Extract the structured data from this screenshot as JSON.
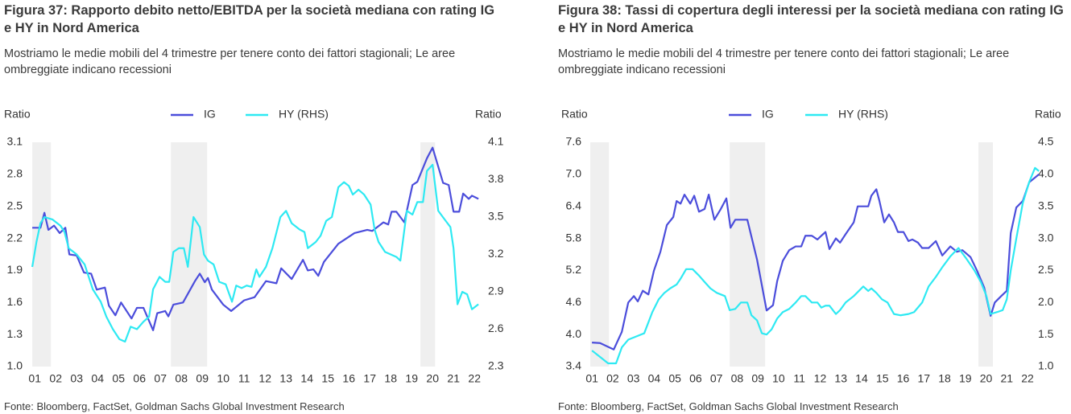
{
  "chart_data": [
    {
      "type": "line",
      "title": "Figura 37: Rapporto debito netto/EBITDA per la società mediana con rating IG e HY in Nord America",
      "subtitle": "Mostriamo le medie mobili del 4 trimestre per tenere conto dei fattori stagionali; Le aree ombreggiate indicano recessioni",
      "ylabel": "Ratio",
      "y2label": "Ratio",
      "source": "Fonte: Bloomberg, FactSet, Goldman Sachs Global Investment Research",
      "xlim": [
        0.8,
        22.3
      ],
      "xticks": [
        {
          "value": 1,
          "label": "01"
        },
        {
          "value": 2,
          "label": "02"
        },
        {
          "value": 3,
          "label": "03"
        },
        {
          "value": 4,
          "label": "04"
        },
        {
          "value": 5,
          "label": "05"
        },
        {
          "value": 6,
          "label": "06"
        },
        {
          "value": 7,
          "label": "07"
        },
        {
          "value": 8,
          "label": "08"
        },
        {
          "value": 9,
          "label": "09"
        },
        10,
        11,
        12,
        13,
        14,
        15,
        16,
        17,
        18,
        19,
        20,
        21,
        22
      ],
      "ylim": [
        1.0,
        3.1
      ],
      "yticks": [
        {
          "value": 1.0,
          "label": "1.0"
        },
        1.3,
        1.6,
        1.9,
        2.2,
        2.5,
        2.8,
        3.1
      ],
      "y2lim": [
        2.3,
        4.1
      ],
      "y2ticks": [
        2.3,
        2.6,
        2.9,
        3.2,
        3.5,
        3.8,
        4.1
      ],
      "recessions": [
        [
          0.88,
          1.77
        ],
        [
          7.5,
          9.23
        ],
        [
          19.42,
          20.12
        ]
      ],
      "series": [
        {
          "name": "IG",
          "color": "#4b4ddb",
          "x": [
            0.88,
            1.27,
            1.46,
            1.65,
            1.92,
            2.19,
            2.46,
            2.65,
            3.0,
            3.35,
            3.69,
            3.96,
            4.35,
            4.54,
            4.85,
            5.12,
            5.62,
            5.88,
            6.19,
            6.65,
            6.85,
            7.23,
            7.38,
            7.62,
            8.08,
            8.65,
            8.88,
            9.12,
            9.27,
            9.46,
            10.0,
            10.38,
            11.0,
            11.5,
            12.04,
            12.54,
            12.77,
            13.27,
            13.81,
            14.04,
            14.31,
            14.54,
            14.81,
            15.5,
            16.27,
            16.88,
            17.12,
            17.65,
            17.88,
            18.04,
            18.27,
            18.65,
            19.04,
            19.27,
            19.73,
            20.0,
            20.5,
            20.77,
            21.0,
            21.27,
            21.46,
            21.73,
            21.88,
            22.19
          ],
          "values": [
            2.3,
            2.3,
            2.44,
            2.28,
            2.32,
            2.25,
            2.3,
            2.05,
            2.04,
            1.88,
            1.87,
            1.72,
            1.74,
            1.57,
            1.48,
            1.6,
            1.45,
            1.55,
            1.55,
            1.34,
            1.5,
            1.52,
            1.47,
            1.58,
            1.6,
            1.8,
            1.87,
            1.79,
            1.83,
            1.72,
            1.58,
            1.52,
            1.62,
            1.65,
            1.8,
            1.78,
            1.92,
            1.82,
            2.0,
            1.9,
            1.91,
            1.85,
            1.98,
            2.15,
            2.25,
            2.28,
            2.27,
            2.35,
            2.33,
            2.45,
            2.45,
            2.35,
            2.7,
            2.73,
            2.95,
            3.05,
            2.72,
            2.7,
            2.45,
            2.45,
            2.62,
            2.57,
            2.6,
            2.57
          ]
        },
        {
          "name": "HY (RHS)",
          "color": "#2ee9f2",
          "axis": "y2",
          "x": [
            0.88,
            1.08,
            1.27,
            1.46,
            1.85,
            2.23,
            2.42,
            2.62,
            3.0,
            3.38,
            3.77,
            4.15,
            4.42,
            4.73,
            5.04,
            5.31,
            5.58,
            5.88,
            6.19,
            6.46,
            6.65,
            6.96,
            7.23,
            7.42,
            7.62,
            7.88,
            8.12,
            8.31,
            8.58,
            8.88,
            9.08,
            9.27,
            9.54,
            9.81,
            10.12,
            10.42,
            10.62,
            10.88,
            11.12,
            11.35,
            11.58,
            11.73,
            12.04,
            12.35,
            12.73,
            13.0,
            13.27,
            13.65,
            13.88,
            14.04,
            14.42,
            14.65,
            14.92,
            15.19,
            15.5,
            15.77,
            16.0,
            16.19,
            16.46,
            16.73,
            17.04,
            17.23,
            17.42,
            17.73,
            18.0,
            18.27,
            18.46,
            18.77,
            19.04,
            19.27,
            19.54,
            19.73,
            20.0,
            20.27,
            20.58,
            20.85,
            21.0,
            21.19,
            21.42,
            21.65,
            21.88,
            22.19
          ],
          "values": [
            3.1,
            3.3,
            3.45,
            3.5,
            3.48,
            3.43,
            3.38,
            3.25,
            3.2,
            3.12,
            2.92,
            2.82,
            2.7,
            2.6,
            2.52,
            2.5,
            2.62,
            2.6,
            2.66,
            2.7,
            2.92,
            3.02,
            2.98,
            2.98,
            3.22,
            3.25,
            3.25,
            3.1,
            3.5,
            3.42,
            3.2,
            3.15,
            3.12,
            2.98,
            2.96,
            2.82,
            2.95,
            2.93,
            2.95,
            2.94,
            3.08,
            3.02,
            3.1,
            3.25,
            3.5,
            3.55,
            3.45,
            3.4,
            3.38,
            3.25,
            3.3,
            3.35,
            3.47,
            3.5,
            3.74,
            3.78,
            3.75,
            3.68,
            3.72,
            3.68,
            3.6,
            3.4,
            3.3,
            3.22,
            3.2,
            3.18,
            3.15,
            3.55,
            3.52,
            3.62,
            3.62,
            3.87,
            3.92,
            3.55,
            3.48,
            3.42,
            3.25,
            2.8,
            2.9,
            2.88,
            2.76,
            2.8
          ]
        }
      ]
    },
    {
      "type": "line",
      "title": "Figura 38: Tassi di copertura degli interessi per la società mediana con rating IG e HY in Nord America",
      "subtitle": "Mostriamo le medie mobili del 4 trimestre per tenere conto dei fattori stagionali; Le aree ombreggiate indicano recessioni",
      "ylabel": "Ratio",
      "y2label": "Ratio",
      "source": "Fonte: Bloomberg, FactSet, Goldman Sachs Global Investment Research",
      "xlim": [
        0.84,
        22.62
      ],
      "xticks": [
        {
          "value": 1,
          "label": "01"
        },
        {
          "value": 2,
          "label": "02"
        },
        {
          "value": 3,
          "label": "03"
        },
        {
          "value": 4,
          "label": "04"
        },
        {
          "value": 5,
          "label": "05"
        },
        {
          "value": 6,
          "label": "06"
        },
        {
          "value": 7,
          "label": "07"
        },
        {
          "value": 8,
          "label": "08"
        },
        {
          "value": 9,
          "label": "09"
        },
        10,
        11,
        12,
        13,
        14,
        15,
        16,
        17,
        18,
        19,
        20,
        21,
        22
      ],
      "ylim": [
        3.4,
        7.6
      ],
      "yticks": [
        3.4,
        {
          "value": 4.0,
          "label": "4.0"
        },
        4.6,
        5.2,
        5.8,
        6.4,
        {
          "value": 7.0,
          "label": "7.0"
        },
        7.6
      ],
      "y2lim": [
        1.0,
        4.5
      ],
      "y2ticks": [
        {
          "value": 1.0,
          "label": "1.0"
        },
        1.5,
        {
          "value": 2.0,
          "label": "2.0"
        },
        2.5,
        {
          "value": 3.0,
          "label": "3.0"
        },
        3.5,
        {
          "value": 4.0,
          "label": "4.0"
        },
        4.5
      ],
      "recessions": [
        [
          0.92,
          1.82
        ],
        [
          7.64,
          9.35
        ],
        [
          19.63,
          20.33
        ]
      ],
      "series": [
        {
          "name": "IG",
          "color": "#4b4ddb",
          "x": [
            1.0,
            1.39,
            2.05,
            2.44,
            2.75,
            3.02,
            3.21,
            3.45,
            3.72,
            3.99,
            4.3,
            4.61,
            4.92,
            5.08,
            5.27,
            5.46,
            5.74,
            5.93,
            6.16,
            6.43,
            6.63,
            6.9,
            7.21,
            7.48,
            7.68,
            7.91,
            8.18,
            8.49,
            8.96,
            9.42,
            9.73,
            9.93,
            10.2,
            10.51,
            10.82,
            11.09,
            11.29,
            11.6,
            11.87,
            12.06,
            12.26,
            12.45,
            12.76,
            12.96,
            13.23,
            13.62,
            13.81,
            14.08,
            14.32,
            14.47,
            14.71,
            14.86,
            15.09,
            15.32,
            15.56,
            15.75,
            16.02,
            16.26,
            16.45,
            16.72,
            16.92,
            17.23,
            17.58,
            17.89,
            18.28,
            18.59,
            18.86,
            19.25,
            19.56,
            19.91,
            20.22,
            20.42,
            20.73,
            21.0,
            21.19,
            21.46,
            21.77,
            22.08,
            22.55
          ],
          "values": [
            3.85,
            3.84,
            3.72,
            4.05,
            4.6,
            4.72,
            4.62,
            4.82,
            4.75,
            5.2,
            5.55,
            6.05,
            6.2,
            6.5,
            6.45,
            6.62,
            6.45,
            6.6,
            6.3,
            6.35,
            6.62,
            6.15,
            6.35,
            6.55,
            6.0,
            6.15,
            6.15,
            6.15,
            5.4,
            4.45,
            4.55,
            5.0,
            5.38,
            5.58,
            5.65,
            5.65,
            5.85,
            5.85,
            5.78,
            5.85,
            5.92,
            5.6,
            5.8,
            5.72,
            5.88,
            6.1,
            6.4,
            6.4,
            6.4,
            6.6,
            6.72,
            6.5,
            6.1,
            6.25,
            6.1,
            5.92,
            5.92,
            5.75,
            5.78,
            5.72,
            5.62,
            5.62,
            5.75,
            5.48,
            5.65,
            5.55,
            5.58,
            5.45,
            5.2,
            4.88,
            4.35,
            4.6,
            4.72,
            4.82,
            5.9,
            6.38,
            6.5,
            6.85,
            7.0
          ]
        },
        {
          "name": "HY (RHS)",
          "color": "#2ee9f2",
          "axis": "y2",
          "x": [
            1.0,
            1.39,
            1.78,
            2.16,
            2.44,
            2.75,
            3.14,
            3.52,
            3.91,
            4.22,
            4.49,
            4.77,
            5.08,
            5.27,
            5.54,
            5.85,
            6.16,
            6.43,
            6.71,
            7.02,
            7.41,
            7.64,
            7.91,
            8.18,
            8.49,
            8.69,
            8.96,
            9.19,
            9.42,
            9.66,
            9.93,
            10.2,
            10.51,
            10.82,
            11.09,
            11.29,
            11.6,
            11.87,
            12.06,
            12.26,
            12.45,
            12.76,
            12.96,
            13.23,
            13.62,
            14.08,
            14.32,
            14.47,
            14.71,
            14.98,
            15.25,
            15.56,
            15.87,
            16.26,
            16.53,
            16.92,
            17.23,
            17.58,
            17.89,
            18.28,
            18.67,
            19.06,
            19.44,
            19.75,
            20.02,
            20.22,
            20.53,
            20.8,
            21.0,
            21.19,
            21.46,
            21.77,
            22.08,
            22.36,
            22.55
          ],
          "values": [
            1.25,
            1.15,
            1.05,
            1.05,
            1.3,
            1.42,
            1.47,
            1.52,
            1.85,
            2.05,
            2.15,
            2.22,
            2.28,
            2.37,
            2.52,
            2.52,
            2.42,
            2.32,
            2.22,
            2.15,
            2.1,
            1.88,
            1.9,
            2.0,
            2.0,
            1.8,
            1.72,
            1.52,
            1.5,
            1.58,
            1.75,
            1.85,
            1.9,
            2.0,
            2.1,
            2.1,
            2.0,
            2.0,
            1.92,
            1.95,
            1.95,
            1.82,
            1.88,
            2.0,
            2.1,
            2.25,
            2.18,
            2.22,
            2.15,
            2.05,
            2.0,
            1.82,
            1.8,
            1.82,
            1.85,
            2.0,
            2.25,
            2.4,
            2.55,
            2.72,
            2.85,
            2.68,
            2.5,
            2.32,
            2.1,
            1.82,
            1.85,
            1.88,
            2.05,
            2.5,
            3.0,
            3.55,
            3.88,
            4.1,
            4.05
          ]
        }
      ]
    }
  ]
}
